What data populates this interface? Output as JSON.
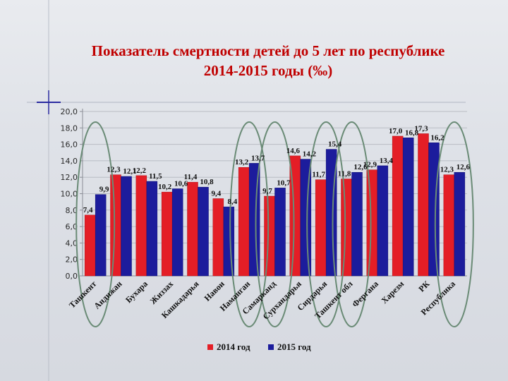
{
  "slide": {
    "title_line1": "Показатель смертности детей до 5 лет по республике",
    "title_line2": "2014-2015 годы (‰)"
  },
  "chart_data": {
    "type": "bar",
    "title": "Показатель смертности детей до 5 лет по республике 2014-2015 годы (‰)",
    "categories": [
      "Ташкент",
      "Андижан",
      "Бухара",
      "Жиззах",
      "Кашкадарья",
      "Навои",
      "Наманган",
      "Самарканд",
      "Сурхандарья",
      "Сирдарья",
      "Ташкент обл",
      "Фергана",
      "Харезм",
      "РК",
      "Республика"
    ],
    "series": [
      {
        "name": "2014 год",
        "color": "#e41e26",
        "values": [
          7.4,
          12.3,
          12.2,
          10.2,
          11.4,
          9.4,
          13.2,
          9.7,
          14.6,
          11.7,
          11.8,
          12.9,
          17.0,
          17.3,
          12.3
        ]
      },
      {
        "name": "2015 год",
        "color": "#1c1c9c",
        "values": [
          9.9,
          12.1,
          11.5,
          10.6,
          10.8,
          8.4,
          13.7,
          10.7,
          14.2,
          15.4,
          12.6,
          13.4,
          16.8,
          16.2,
          12.6
        ]
      }
    ],
    "value_labels_2014": [
      "7,4",
      "12,3",
      "12,2",
      "10,2",
      "11,4",
      "9,4",
      "13,2",
      "9,7",
      "14,6",
      "11,7",
      "11,8",
      "12,9",
      "17,0",
      "17,3",
      "12,3"
    ],
    "value_labels_2015": [
      "9,9",
      "12,1",
      "11,5",
      "10,6",
      "10,8",
      "8,4",
      "13,7",
      "10,7",
      "14,2",
      "15,4",
      "12,6",
      "13,4",
      "16,8",
      "16,2",
      "12,6"
    ],
    "y_ticks": [
      "0,0",
      "2,0",
      "4,0",
      "6,0",
      "8,0",
      "10,0",
      "12,0",
      "14,0",
      "16,0",
      "18,0",
      "20,0"
    ],
    "ylim": [
      0,
      20
    ],
    "grid": true,
    "legend_position": "bottom",
    "highlighted_categories": [
      "Ташкент",
      "Наманган",
      "Самарканд",
      "Сирдарья",
      "Ташкент обл",
      "Республика"
    ],
    "highlight_color": "#6a8b76"
  }
}
